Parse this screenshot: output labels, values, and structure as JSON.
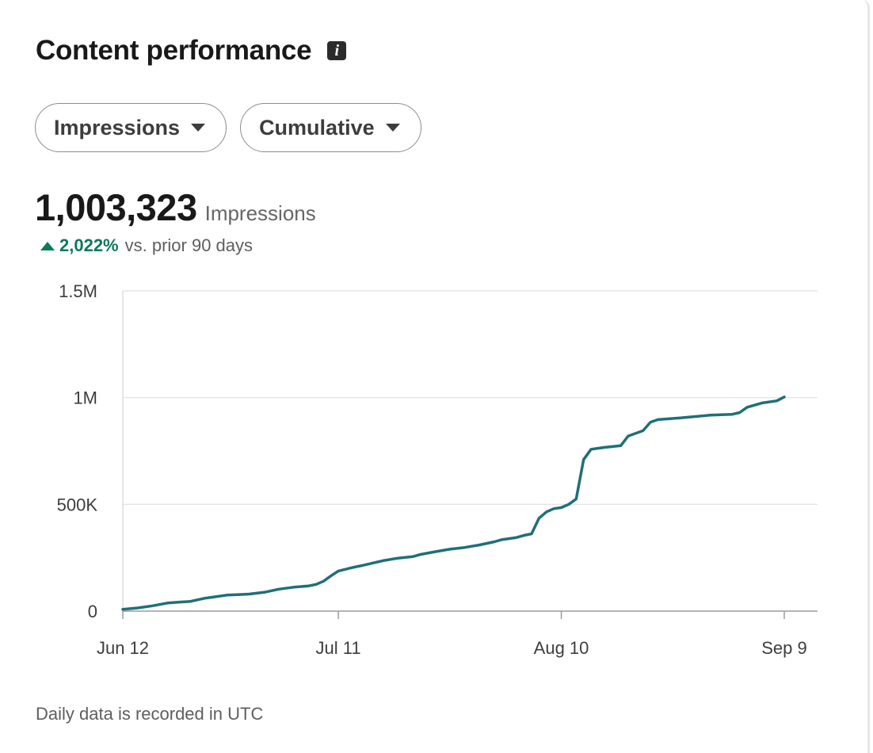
{
  "card": {
    "title": "Content performance",
    "info_icon_glyph": "i",
    "info_icon": "info-icon"
  },
  "filters": {
    "metric": "Impressions",
    "mode": "Cumulative"
  },
  "summary": {
    "value": "1,003,323",
    "label": "Impressions",
    "change_pct": "2,022%",
    "change_period": "vs. prior 90 days",
    "change_color": "#0a7a58"
  },
  "footnote": "Daily data is recorded in UTC",
  "chart_data": {
    "type": "line",
    "title": "",
    "xlabel": "",
    "ylabel": "",
    "ylim": [
      0,
      1500000
    ],
    "y_ticks": [
      0,
      500000,
      1000000,
      1500000
    ],
    "y_tick_labels": [
      "0",
      "500K",
      "1M",
      "1.5M"
    ],
    "x_range": [
      "2024-06-12",
      "2024-09-09"
    ],
    "x_ticks": [
      "2024-06-12",
      "2024-07-11",
      "2024-08-10",
      "2024-09-09"
    ],
    "x_tick_labels": [
      "Jun 12",
      "Jul 11",
      "Aug 10",
      "Sep 9"
    ],
    "grid": "horizontal",
    "line_color": "#1f6f78",
    "series": [
      {
        "points": [
          [
            "2024-06-12",
            8000
          ],
          [
            "2024-06-14",
            15000
          ],
          [
            "2024-06-16",
            25000
          ],
          [
            "2024-06-18",
            38000
          ],
          [
            "2024-06-20",
            43000
          ],
          [
            "2024-06-21",
            45000
          ],
          [
            "2024-06-23",
            60000
          ],
          [
            "2024-06-24",
            65000
          ],
          [
            "2024-06-26",
            75000
          ],
          [
            "2024-06-28",
            78000
          ],
          [
            "2024-06-29",
            80000
          ],
          [
            "2024-07-01",
            88000
          ],
          [
            "2024-07-03",
            103000
          ],
          [
            "2024-07-05",
            112000
          ],
          [
            "2024-07-07",
            118000
          ],
          [
            "2024-07-08",
            125000
          ],
          [
            "2024-07-09",
            140000
          ],
          [
            "2024-07-10",
            165000
          ],
          [
            "2024-07-11",
            188000
          ],
          [
            "2024-07-13",
            205000
          ],
          [
            "2024-07-14",
            212000
          ],
          [
            "2024-07-16",
            228000
          ],
          [
            "2024-07-17",
            236000
          ],
          [
            "2024-07-19",
            248000
          ],
          [
            "2024-07-21",
            255000
          ],
          [
            "2024-07-22",
            265000
          ],
          [
            "2024-07-24",
            278000
          ],
          [
            "2024-07-26",
            290000
          ],
          [
            "2024-07-28",
            298000
          ],
          [
            "2024-07-30",
            310000
          ],
          [
            "2024-08-01",
            325000
          ],
          [
            "2024-08-02",
            335000
          ],
          [
            "2024-08-04",
            345000
          ],
          [
            "2024-08-05",
            355000
          ],
          [
            "2024-08-06",
            362000
          ],
          [
            "2024-08-07",
            435000
          ],
          [
            "2024-08-08",
            465000
          ],
          [
            "2024-08-09",
            480000
          ],
          [
            "2024-08-10",
            485000
          ],
          [
            "2024-08-11",
            500000
          ],
          [
            "2024-08-12",
            525000
          ],
          [
            "2024-08-13",
            710000
          ],
          [
            "2024-08-14",
            758000
          ],
          [
            "2024-08-16",
            768000
          ],
          [
            "2024-08-18",
            775000
          ],
          [
            "2024-08-19",
            820000
          ],
          [
            "2024-08-21",
            845000
          ],
          [
            "2024-08-22",
            885000
          ],
          [
            "2024-08-23",
            897000
          ],
          [
            "2024-08-26",
            905000
          ],
          [
            "2024-08-30",
            918000
          ],
          [
            "2024-09-02",
            922000
          ],
          [
            "2024-09-03",
            930000
          ],
          [
            "2024-09-04",
            955000
          ],
          [
            "2024-09-06",
            975000
          ],
          [
            "2024-09-08",
            985000
          ],
          [
            "2024-09-09",
            1003323
          ]
        ]
      }
    ]
  }
}
